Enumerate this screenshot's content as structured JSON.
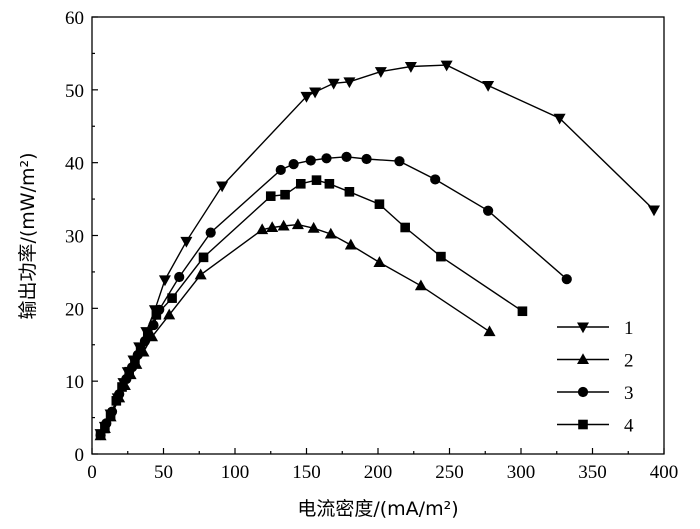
{
  "chart_data": {
    "type": "line",
    "xlabel": "电流密度/(mA/m²)",
    "ylabel": "输出功率/(mW/m²)",
    "xlim": [
      0,
      400
    ],
    "ylim": [
      0,
      60
    ],
    "xticks": [
      0,
      50,
      100,
      150,
      200,
      250,
      300,
      350,
      400
    ],
    "yticks": [
      0,
      10,
      20,
      30,
      40,
      50,
      60
    ],
    "legend_position": "bottom-right",
    "series": [
      {
        "name": "1",
        "marker": "triangle-down",
        "x": [
          6,
          9,
          13,
          18,
          22,
          25,
          29,
          33,
          38,
          44,
          51,
          66,
          91,
          150,
          156,
          169,
          180,
          202,
          223,
          248,
          277,
          327,
          393
        ],
        "y": [
          2.8,
          3.8,
          5.5,
          7.7,
          9.8,
          11.3,
          12.9,
          14.7,
          16.8,
          19.8,
          23.9,
          29.2,
          36.8,
          49.1,
          49.7,
          50.9,
          51.1,
          52.5,
          53.2,
          53.4,
          50.6,
          46.1,
          33.5
        ]
      },
      {
        "name": "2",
        "marker": "triangle-up",
        "x": [
          6,
          9,
          13,
          19,
          23,
          27,
          31,
          36,
          42,
          54,
          76,
          119,
          126,
          134,
          144,
          155,
          167,
          181,
          201,
          230,
          278
        ],
        "y": [
          2.5,
          3.5,
          5.1,
          7.7,
          9.4,
          10.9,
          12.3,
          14.0,
          16.1,
          19.1,
          24.6,
          30.8,
          31.1,
          31.3,
          31.5,
          31.0,
          30.2,
          28.7,
          26.3,
          23.1,
          16.8
        ]
      },
      {
        "name": "3",
        "marker": "circle",
        "x": [
          6,
          10,
          14,
          19,
          24,
          28,
          32,
          37,
          43,
          47,
          61,
          83,
          132,
          141,
          153,
          164,
          178,
          192,
          215,
          240,
          277,
          332
        ],
        "y": [
          2.6,
          4.2,
          5.8,
          8.2,
          10.3,
          11.9,
          13.6,
          15.5,
          17.7,
          19.8,
          24.3,
          30.4,
          39.0,
          39.8,
          40.3,
          40.6,
          40.8,
          40.5,
          40.2,
          37.7,
          33.4,
          24.0
        ]
      },
      {
        "name": "4",
        "marker": "square",
        "x": [
          6,
          9,
          13,
          17,
          21,
          26,
          30,
          34,
          39,
          45,
          56,
          78,
          125,
          135,
          146,
          157,
          166,
          180,
          201,
          219,
          244,
          301
        ],
        "y": [
          2.6,
          3.5,
          5.2,
          7.3,
          9.2,
          11.3,
          12.8,
          14.4,
          16.6,
          19.1,
          21.4,
          27.0,
          35.4,
          35.6,
          37.1,
          37.6,
          37.1,
          36.0,
          34.3,
          31.1,
          27.1,
          19.6
        ]
      }
    ]
  }
}
